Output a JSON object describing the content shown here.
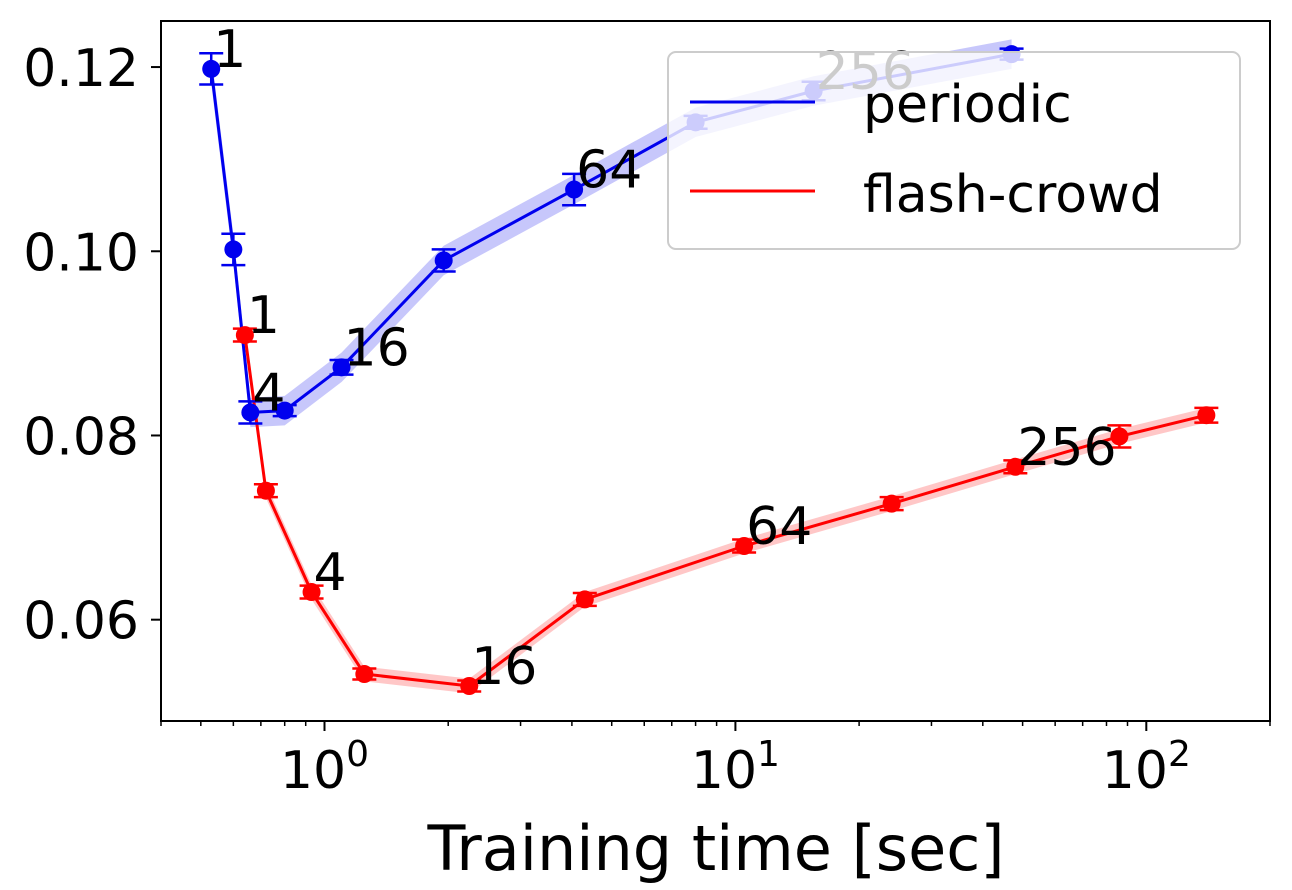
{
  "chart_data": {
    "type": "line",
    "xlabel": "Training time [sec]",
    "ylabel": "",
    "xscale": "log",
    "xlim": [
      0.4,
      200
    ],
    "ylim": [
      0.049,
      0.125
    ],
    "grid": false,
    "legend_position": "top-right",
    "x_tick_labels": [
      {
        "base": "10",
        "exp": "0",
        "value": 1
      },
      {
        "base": "10",
        "exp": "1",
        "value": 10
      },
      {
        "base": "10",
        "exp": "2",
        "value": 100
      }
    ],
    "y_ticks": [
      0.06,
      0.08,
      0.1,
      0.12
    ],
    "y_tick_labels": [
      "0.06",
      "0.08",
      "0.10",
      "0.12"
    ],
    "series": [
      {
        "name": "periodic",
        "color": "#0000ee",
        "points": [
          {
            "x": 0.53,
            "y": 0.1198,
            "err": 0.0017,
            "label": "1"
          },
          {
            "x": 0.6,
            "y": 0.1002,
            "err": 0.0017,
            "label": ""
          },
          {
            "x": 0.66,
            "y": 0.0825,
            "err": 0.0012,
            "label": "4"
          },
          {
            "x": 0.8,
            "y": 0.0827,
            "err": 0.0006,
            "label": ""
          },
          {
            "x": 1.1,
            "y": 0.0874,
            "err": 0.0008,
            "label": "16"
          },
          {
            "x": 1.95,
            "y": 0.099,
            "err": 0.0012,
            "label": ""
          },
          {
            "x": 4.05,
            "y": 0.1067,
            "err": 0.0017,
            "label": "64"
          },
          {
            "x": 8.0,
            "y": 0.114,
            "err": 0.0007,
            "label": ""
          },
          {
            "x": 15.5,
            "y": 0.1174,
            "err": 0.001,
            "label": "256"
          },
          {
            "x": 47.0,
            "y": 0.1214,
            "err": 0.0006,
            "label": ""
          }
        ],
        "band": 0.0016
      },
      {
        "name": "flash-crowd",
        "color": "#ff0000",
        "points": [
          {
            "x": 0.64,
            "y": 0.0909,
            "err": 0.0007,
            "label": "1"
          },
          {
            "x": 0.72,
            "y": 0.074,
            "err": 0.0007,
            "label": ""
          },
          {
            "x": 0.93,
            "y": 0.063,
            "err": 0.0007,
            "label": "4"
          },
          {
            "x": 1.25,
            "y": 0.0541,
            "err": 0.0006,
            "label": ""
          },
          {
            "x": 2.25,
            "y": 0.0528,
            "err": 0.0006,
            "label": "16"
          },
          {
            "x": 4.3,
            "y": 0.0622,
            "err": 0.0007,
            "label": ""
          },
          {
            "x": 10.5,
            "y": 0.068,
            "err": 0.0007,
            "label": "64"
          },
          {
            "x": 24.0,
            "y": 0.0726,
            "err": 0.0007,
            "label": ""
          },
          {
            "x": 48.0,
            "y": 0.0766,
            "err": 0.0007,
            "label": "256"
          },
          {
            "x": 86.0,
            "y": 0.0799,
            "err": 0.0012,
            "label": ""
          },
          {
            "x": 140.0,
            "y": 0.0822,
            "err": 0.0008,
            "label": ""
          }
        ],
        "band": 0.0008
      }
    ]
  }
}
